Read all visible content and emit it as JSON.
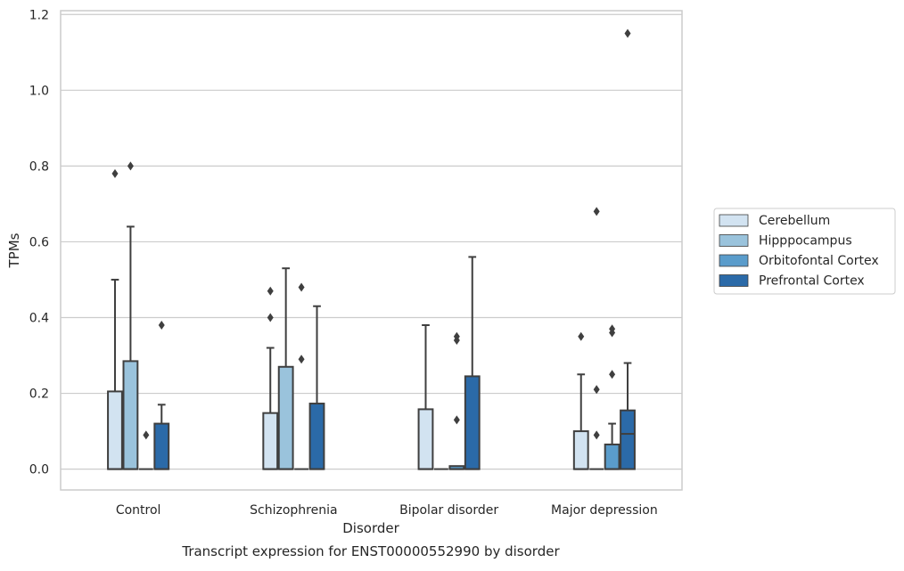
{
  "chart_data": {
    "type": "box",
    "title": "",
    "caption": "Transcript expression for ENST00000552990 by disorder",
    "xlabel": "Disorder",
    "ylabel": "TPMs",
    "ylim": [
      -0.055,
      1.21
    ],
    "yticks": [
      0.0,
      0.2,
      0.4,
      0.6,
      0.8,
      1.0,
      1.2
    ],
    "ytick_labels": [
      "0.0",
      "0.2",
      "0.4",
      "0.6",
      "0.8",
      "1.0",
      "1.2"
    ],
    "grid": "horizontal",
    "legend_position": "right",
    "categories": [
      "Control",
      "Schizophrenia",
      "Bipolar disorder",
      "Major depression"
    ],
    "series": [
      {
        "name": "Cerebellum",
        "color": "#d2e3f1",
        "boxes": [
          {
            "category": "Control",
            "whisker_low": 0.0,
            "q1": 0.0,
            "median": 0.0,
            "q3": 0.205,
            "whisker_high": 0.5,
            "outliers": [
              0.78
            ]
          },
          {
            "category": "Schizophrenia",
            "whisker_low": 0.0,
            "q1": 0.0,
            "median": 0.0,
            "q3": 0.148,
            "whisker_high": 0.32,
            "outliers": [
              0.4,
              0.47
            ]
          },
          {
            "category": "Bipolar disorder",
            "whisker_low": 0.0,
            "q1": 0.0,
            "median": 0.0,
            "q3": 0.158,
            "whisker_high": 0.38,
            "outliers": []
          },
          {
            "category": "Major depression",
            "whisker_low": 0.0,
            "q1": 0.0,
            "median": 0.0,
            "q3": 0.1,
            "whisker_high": 0.25,
            "outliers": [
              0.35
            ]
          }
        ]
      },
      {
        "name": "Hipppocampus",
        "color": "#9ac3dc",
        "boxes": [
          {
            "category": "Control",
            "whisker_low": 0.0,
            "q1": 0.0,
            "median": 0.0,
            "q3": 0.285,
            "whisker_high": 0.64,
            "outliers": [
              0.8
            ]
          },
          {
            "category": "Schizophrenia",
            "whisker_low": 0.0,
            "q1": 0.0,
            "median": 0.0,
            "q3": 0.27,
            "whisker_high": 0.53,
            "outliers": []
          },
          {
            "category": "Bipolar disorder",
            "whisker_low": 0.0,
            "q1": 0.0,
            "median": 0.0,
            "q3": 0.0,
            "whisker_high": 0.0,
            "outliers": []
          },
          {
            "category": "Major depression",
            "whisker_low": 0.0,
            "q1": 0.0,
            "median": 0.0,
            "q3": 0.0,
            "whisker_high": 0.0,
            "outliers": [
              0.09,
              0.21,
              0.68
            ]
          }
        ]
      },
      {
        "name": "Orbitofontal Cortex",
        "color": "#5a9ccb",
        "boxes": [
          {
            "category": "Control",
            "whisker_low": 0.0,
            "q1": 0.0,
            "median": 0.0,
            "q3": 0.0,
            "whisker_high": 0.0,
            "outliers": [
              0.09
            ]
          },
          {
            "category": "Schizophrenia",
            "whisker_low": 0.0,
            "q1": 0.0,
            "median": 0.0,
            "q3": 0.0,
            "whisker_high": 0.0,
            "outliers": [
              0.29,
              0.48
            ]
          },
          {
            "category": "Bipolar disorder",
            "whisker_low": 0.0,
            "q1": 0.0,
            "median": 0.0,
            "q3": 0.008,
            "whisker_high": 0.008,
            "outliers": [
              0.13,
              0.34,
              0.35
            ]
          },
          {
            "category": "Major depression",
            "whisker_low": 0.0,
            "q1": 0.0,
            "median": 0.0,
            "q3": 0.065,
            "whisker_high": 0.12,
            "outliers": [
              0.25,
              0.36,
              0.37
            ]
          }
        ]
      },
      {
        "name": "Prefrontal Cortex",
        "color": "#2b6aa8",
        "boxes": [
          {
            "category": "Control",
            "whisker_low": 0.0,
            "q1": 0.0,
            "median": 0.0,
            "q3": 0.12,
            "whisker_high": 0.17,
            "outliers": [
              0.38
            ]
          },
          {
            "category": "Schizophrenia",
            "whisker_low": 0.0,
            "q1": 0.0,
            "median": 0.0,
            "q3": 0.173,
            "whisker_high": 0.43,
            "outliers": []
          },
          {
            "category": "Bipolar disorder",
            "whisker_low": 0.0,
            "q1": 0.0,
            "median": 0.0,
            "q3": 0.245,
            "whisker_high": 0.56,
            "outliers": []
          },
          {
            "category": "Major depression",
            "whisker_low": 0.0,
            "q1": 0.0,
            "median": 0.093,
            "q3": 0.155,
            "whisker_high": 0.28,
            "outliers": [
              1.15
            ]
          }
        ]
      }
    ]
  }
}
